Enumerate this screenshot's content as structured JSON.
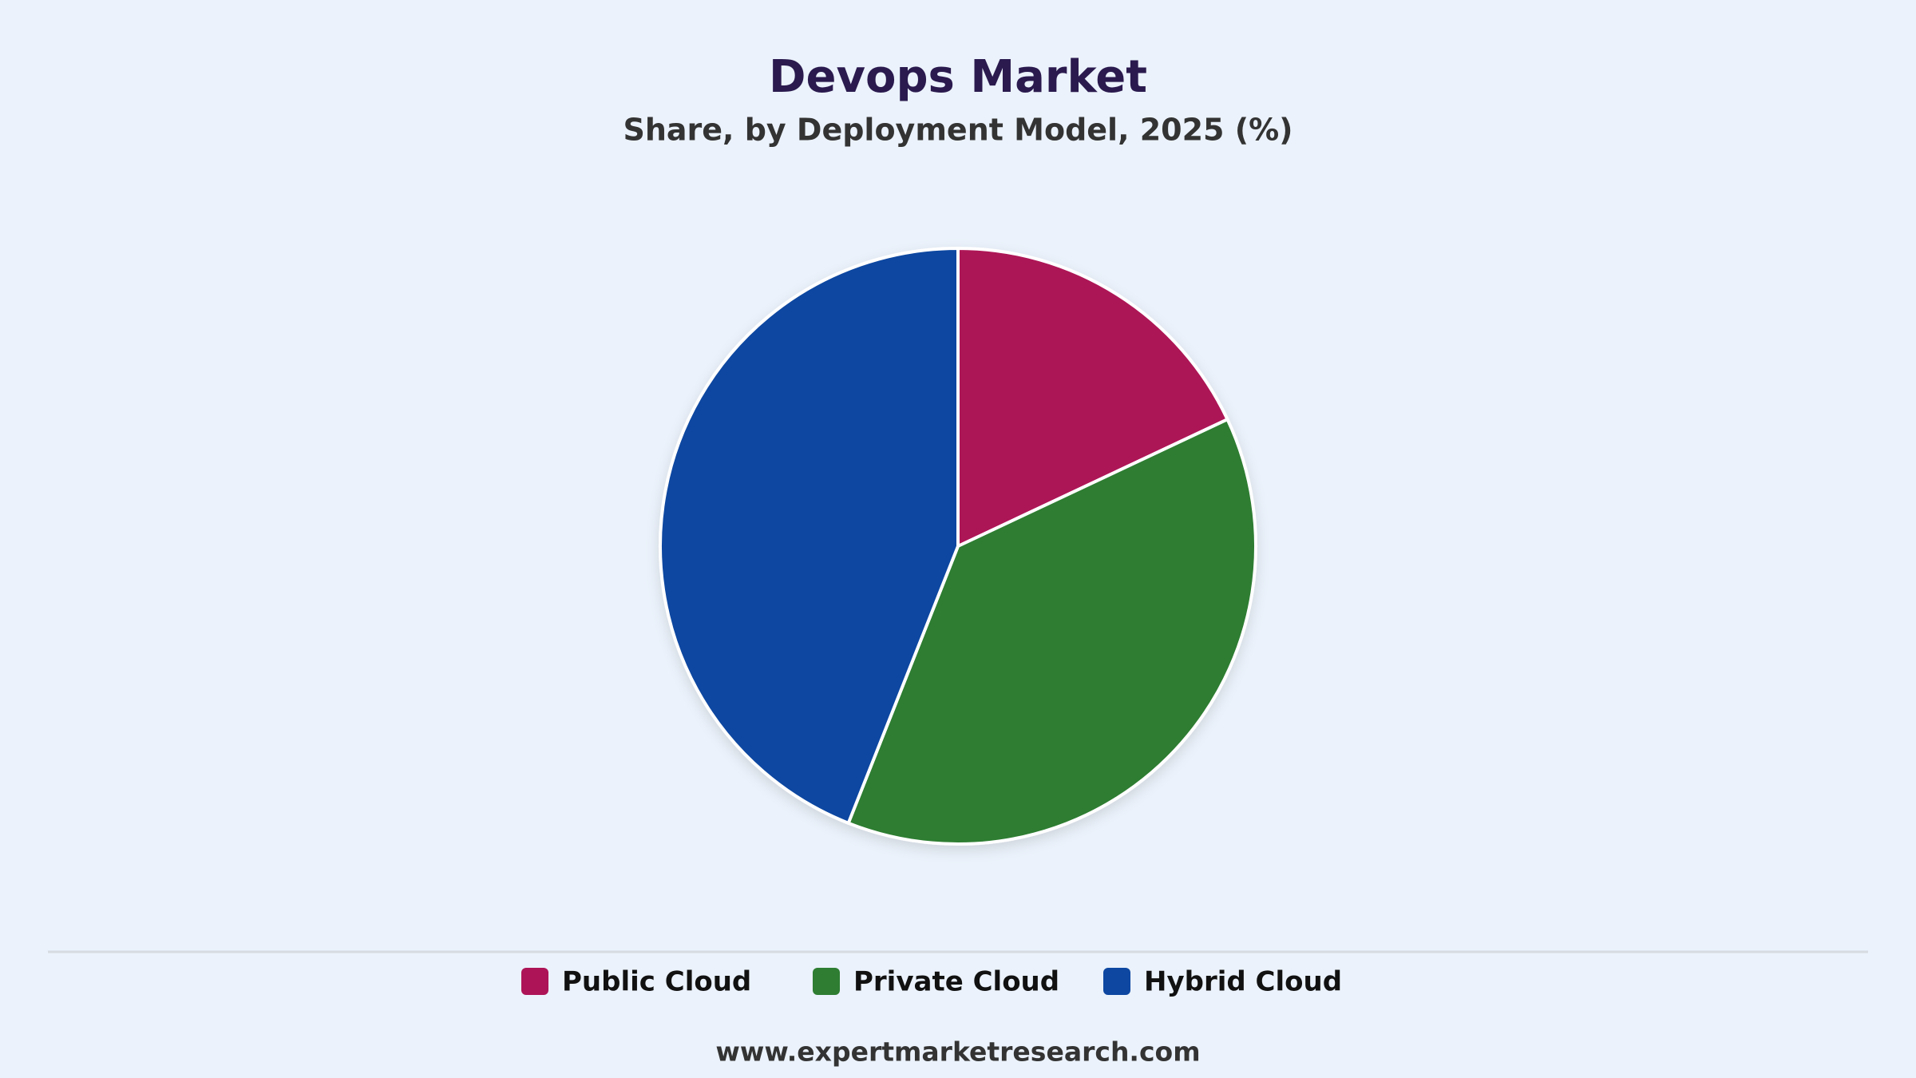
{
  "chart_data": {
    "type": "pie",
    "title": "Devops Market",
    "subtitle": "Share, by Deployment Model, 2025 (%)",
    "categories": [
      "Public Cloud",
      "Private Cloud",
      "Hybrid Cloud"
    ],
    "values": [
      18,
      38,
      44
    ],
    "colors": [
      "#ad1457",
      "#2e7d32",
      "#0d47a1"
    ],
    "legend": "bottom",
    "source": "www.expertmarketresearch.com"
  }
}
